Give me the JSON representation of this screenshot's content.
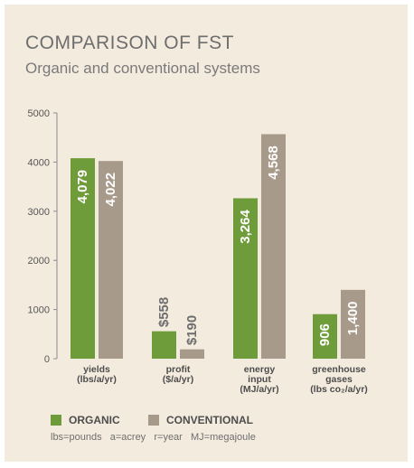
{
  "title": "COMPARISON OF FST",
  "subtitle": "Organic and conventional systems",
  "colors": {
    "organic": "#6f9c3a",
    "conventional": "#a89a8b",
    "axis": "#8c8c8c",
    "background": "#f3ebde"
  },
  "chart_data": {
    "type": "bar",
    "title": "COMPARISON OF FST",
    "subtitle": "Organic and conventional systems",
    "ylim": [
      0,
      5000
    ],
    "yticks": [
      "0",
      "1000",
      "2000",
      "3000",
      "4000",
      "5000"
    ],
    "categories": [
      [
        "yields",
        "(lbs/a/yr)"
      ],
      [
        "profit",
        "($/a/yr)"
      ],
      [
        "energy",
        "input",
        "(MJ/a/yr)"
      ],
      [
        "greenhouse",
        "gases",
        "(lbs co₂/a/yr)"
      ]
    ],
    "series": [
      {
        "name": "ORGANIC",
        "values": [
          4079,
          558,
          3264,
          906
        ],
        "labels": [
          "4,079",
          "$558",
          "3,264",
          "906"
        ]
      },
      {
        "name": "CONVENTIONAL",
        "values": [
          4022,
          190,
          4568,
          1400
        ],
        "labels": [
          "4,022",
          "$190",
          "4,568",
          "1,400"
        ]
      }
    ],
    "legend": "bottom-left",
    "grid": false
  },
  "legend_labels": [
    "ORGANIC",
    "CONVENTIONAL"
  ],
  "footnote": "lbs=pounds   a=acrey   r=year   MJ=megajoule"
}
